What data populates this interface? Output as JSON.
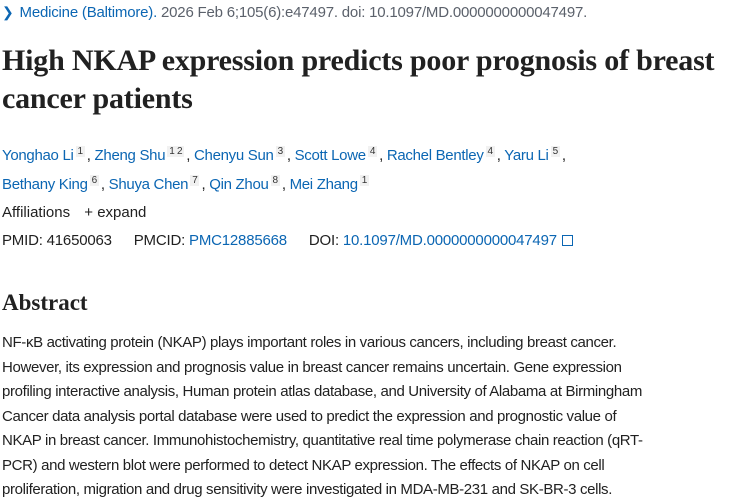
{
  "citation": {
    "journal": "Medicine (Baltimore).",
    "details": " 2026 Feb 6;105(6):e47497. doi: 10.1097/MD.0000000000047497."
  },
  "title": "High NKAP expression predicts poor prognosis of breast cancer patients",
  "authors": [
    {
      "name": "Yonghao Li",
      "affs": "1",
      "sep": ","
    },
    {
      "name": "Zheng Shu",
      "affs": "1 2",
      "sep": ","
    },
    {
      "name": "Chenyu Sun",
      "affs": "3",
      "sep": ","
    },
    {
      "name": "Scott Lowe",
      "affs": "4",
      "sep": ","
    },
    {
      "name": "Rachel Bentley",
      "affs": "4",
      "sep": ","
    },
    {
      "name": "Yaru Li",
      "affs": "5",
      "sep": ","
    },
    {
      "name": "Bethany King",
      "affs": "6",
      "sep": ","
    },
    {
      "name": "Shuya Chen",
      "affs": "7",
      "sep": ","
    },
    {
      "name": "Qin Zhou",
      "affs": "8",
      "sep": ","
    },
    {
      "name": "Mei Zhang",
      "affs": "1",
      "sep": ""
    }
  ],
  "affiliations": {
    "label": "Affiliations",
    "expand": "+ expand"
  },
  "ids": {
    "pmid_label": "PMID:",
    "pmid": "41650063",
    "pmcid_label": "PMCID:",
    "pmcid": "PMC12885668",
    "doi_label": "DOI:",
    "doi": "10.1097/MD.0000000000047497"
  },
  "abstract": {
    "heading": "Abstract",
    "lines": [
      "NF-κB activating protein (NKAP) plays important roles in various cancers, including breast cancer.",
      "However, its expression and prognosis value in breast cancer remains uncertain. Gene expression",
      "profiling interactive analysis, Human protein atlas database, and University of Alabama at Birmingham",
      "Cancer data analysis portal database were used to predict the expression and prognostic value of",
      "NKAP in breast cancer. Immunohistochemistry, quantitative real time polymerase chain reaction (qRT-",
      "PCR) and western blot were performed to detect NKAP expression. The effects of NKAP on cell",
      "proliferation, migration and drug sensitivity were investigated in MDA-MB-231 and SK-BR-3 cells."
    ]
  }
}
